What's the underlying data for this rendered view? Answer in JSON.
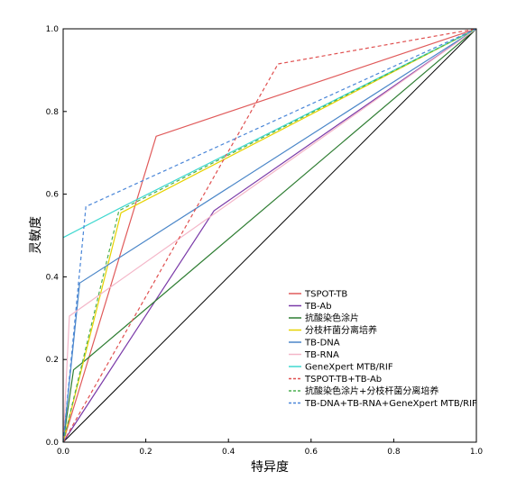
{
  "chart_data": {
    "type": "line",
    "title": "",
    "xlabel": "特异度",
    "ylabel": "灵敏度",
    "xlim": [
      0,
      1
    ],
    "ylim": [
      0,
      1
    ],
    "x_ticks": [
      "0.0",
      "0.2",
      "0.4",
      "0.6",
      "0.8",
      "1.0"
    ],
    "y_ticks": [
      "0.0",
      "0.2",
      "0.4",
      "0.6",
      "0.8",
      "1.0"
    ],
    "grid": false,
    "legend_position": "bottom-right",
    "reference_line": {
      "points": [
        [
          0,
          0
        ],
        [
          1,
          1
        ]
      ],
      "color": "#000000"
    },
    "series": [
      {
        "name": "TSPOT-TB",
        "color": "#e05a5a",
        "dash": "solid",
        "points": [
          [
            0,
            0
          ],
          [
            0.225,
            0.74
          ],
          [
            1,
            1
          ]
        ]
      },
      {
        "name": "TB-Ab",
        "color": "#7a3aa8",
        "dash": "solid",
        "points": [
          [
            0,
            0
          ],
          [
            0.365,
            0.56
          ],
          [
            1,
            1
          ]
        ]
      },
      {
        "name": "抗酸染色涂片",
        "color": "#2e7d32",
        "dash": "solid",
        "points": [
          [
            0,
            0
          ],
          [
            0.025,
            0.175
          ],
          [
            0.05,
            0.195
          ],
          [
            1,
            1
          ]
        ]
      },
      {
        "name": "分枝杆菌分离培养",
        "color": "#e6d200",
        "dash": "solid",
        "points": [
          [
            0,
            0
          ],
          [
            0.14,
            0.555
          ],
          [
            1,
            1
          ]
        ]
      },
      {
        "name": "TB-DNA",
        "color": "#4a86c8",
        "dash": "solid",
        "points": [
          [
            0,
            0
          ],
          [
            0.04,
            0.385
          ],
          [
            1,
            1
          ]
        ]
      },
      {
        "name": "TB-RNA",
        "color": "#f4b6c8",
        "dash": "solid",
        "points": [
          [
            0,
            0
          ],
          [
            0.015,
            0.305
          ],
          [
            1,
            1
          ]
        ]
      },
      {
        "name": "GeneXpert MTB/RIF",
        "color": "#3fd8d0",
        "dash": "solid",
        "points": [
          [
            0,
            0.495
          ],
          [
            0.135,
            0.565
          ],
          [
            1,
            1
          ]
        ]
      },
      {
        "name": "TSPOT-TB+TB-Ab",
        "color": "#e05050",
        "dash": "dashed",
        "points": [
          [
            0,
            0
          ],
          [
            0.52,
            0.915
          ],
          [
            1,
            1
          ]
        ]
      },
      {
        "name": "抗酸染色涂片+分枝杆菌分离培养",
        "color": "#4caf50",
        "dash": "dashed",
        "points": [
          [
            0,
            0
          ],
          [
            0.135,
            0.56
          ],
          [
            1,
            1
          ]
        ]
      },
      {
        "name": "TB-DNA+TB-RNA+GeneXpert MTB/RIF",
        "color": "#4a86d8",
        "dash": "dashed",
        "points": [
          [
            0,
            0
          ],
          [
            0.055,
            0.57
          ],
          [
            1,
            1
          ]
        ]
      }
    ]
  }
}
